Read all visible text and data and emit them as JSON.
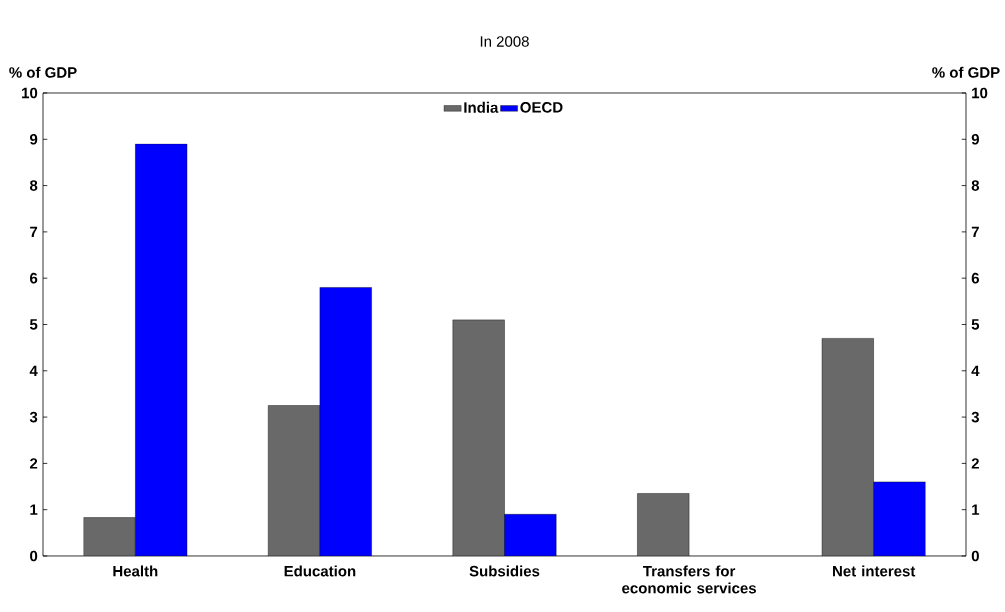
{
  "chart_data": {
    "type": "bar",
    "title": "In 2008",
    "ylabel": "% of GDP",
    "y2label": "% of GDP",
    "categories": [
      "Health",
      "Education",
      "Subsidies",
      "Transfers for economic services",
      "Net interest"
    ],
    "series": [
      {
        "name": "India",
        "color": "#696969",
        "values": [
          0.83,
          3.25,
          5.1,
          1.35,
          4.7
        ]
      },
      {
        "name": "OECD",
        "color": "#0000ff",
        "values": [
          8.9,
          5.8,
          0.9,
          null,
          1.6
        ]
      }
    ],
    "ylim": [
      0,
      10
    ],
    "yticks": [
      0,
      1,
      2,
      3,
      4,
      5,
      6,
      7,
      8,
      9,
      10
    ],
    "y2lim": [
      0,
      10
    ],
    "y2ticks": [
      0,
      1,
      2,
      3,
      4,
      5,
      6,
      7,
      8,
      9,
      10
    ],
    "legend": "top"
  }
}
